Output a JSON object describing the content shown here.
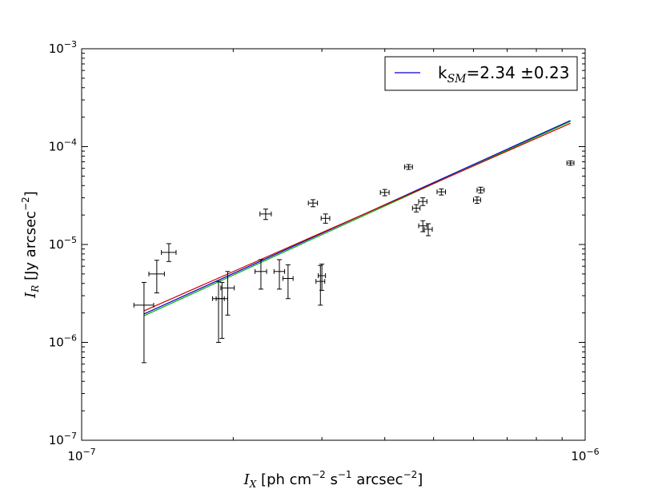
{
  "chart_data": {
    "type": "scatter",
    "xscale": "log",
    "yscale": "log",
    "xlim": [
      1e-07,
      1e-06
    ],
    "ylim": [
      1e-07,
      0.001
    ],
    "xlabel": {
      "var": "I",
      "sub": "X",
      "text": " [ph cm",
      "exp1": "−2",
      "mid1": " s",
      "exp2": "−1",
      "mid2": " arcsec",
      "exp3": "−2",
      "end": "]"
    },
    "ylabel": {
      "var": "I",
      "sub": "R",
      "text": " [Jy arcsec",
      "exp": "−2",
      "end": "]"
    },
    "xticks": [
      {
        "value": 1e-07,
        "base": "10",
        "exp": "−7"
      },
      {
        "value": 1e-06,
        "base": "10",
        "exp": "−6"
      }
    ],
    "yticks": [
      {
        "value": 1e-07,
        "base": "10",
        "exp": "−7"
      },
      {
        "value": 1e-06,
        "base": "10",
        "exp": "−6"
      },
      {
        "value": 1e-05,
        "base": "10",
        "exp": "−5"
      },
      {
        "value": 0.0001,
        "base": "10",
        "exp": "−4"
      },
      {
        "value": 0.001,
        "base": "10",
        "exp": "−3"
      }
    ],
    "grid": false,
    "legend": {
      "placement": "top-right",
      "entry": {
        "pre": "k",
        "sub": "SM",
        "post": "=2.34 ±0.23"
      },
      "color": "#0000cc"
    },
    "points": [
      {
        "x": 1.33e-07,
        "y": 2.4e-06,
        "xerr": 6e-09,
        "yerr_low": 1.78e-06,
        "yerr_high": 1.7e-06
      },
      {
        "x": 1.41e-07,
        "y": 5e-06,
        "xerr": 5e-09,
        "yerr_low": 1.8e-06,
        "yerr_high": 1.9e-06
      },
      {
        "x": 1.49e-07,
        "y": 8.3e-06,
        "xerr": 5e-09,
        "yerr_low": 1.6e-06,
        "yerr_high": 1.9e-06
      },
      {
        "x": 1.87e-07,
        "y": 2.8e-06,
        "xerr": 5e-09,
        "yerr_low": 1.8e-06,
        "yerr_high": 1.4e-06
      },
      {
        "x": 1.9e-07,
        "y": 2.8e-06,
        "xerr": 5e-09,
        "yerr_low": 1.7e-06,
        "yerr_high": 1.3e-06
      },
      {
        "x": 1.95e-07,
        "y": 3.6e-06,
        "xerr": 6e-09,
        "yerr_low": 1.7e-06,
        "yerr_high": 1.7e-06
      },
      {
        "x": 2.27e-07,
        "y": 5.3e-06,
        "xerr": 6e-09,
        "yerr_low": 1.8e-06,
        "yerr_high": 1.7e-06
      },
      {
        "x": 2.32e-07,
        "y": 2.05e-05,
        "xerr": 6e-09,
        "yerr_low": 2.5e-06,
        "yerr_high": 2.5e-06
      },
      {
        "x": 2.47e-07,
        "y": 5.3e-06,
        "xerr": 6e-09,
        "yerr_low": 1.8e-06,
        "yerr_high": 1.7e-06
      },
      {
        "x": 2.57e-07,
        "y": 4.5e-06,
        "xerr": 6e-09,
        "yerr_low": 1.7e-06,
        "yerr_high": 1.7e-06
      },
      {
        "x": 2.88e-07,
        "y": 2.65e-05,
        "xerr": 6e-09,
        "yerr_low": 2.2e-06,
        "yerr_high": 2.2e-06
      },
      {
        "x": 2.98e-07,
        "y": 4.2e-06,
        "xerr": 6e-09,
        "yerr_low": 1.8e-06,
        "yerr_high": 1.9e-06
      },
      {
        "x": 3e-07,
        "y": 4.8e-06,
        "xerr": 5e-09,
        "yerr_low": 1.4e-06,
        "yerr_high": 1.5e-06
      },
      {
        "x": 3.05e-07,
        "y": 1.85e-05,
        "xerr": 6e-09,
        "yerr_low": 2e-06,
        "yerr_high": 2e-06
      },
      {
        "x": 4e-07,
        "y": 3.4e-05,
        "xerr": 8e-09,
        "yerr_low": 2.5e-06,
        "yerr_high": 2.5e-06
      },
      {
        "x": 4.46e-07,
        "y": 6.2e-05,
        "xerr": 8e-09,
        "yerr_low": 3.5e-06,
        "yerr_high": 3.5e-06
      },
      {
        "x": 4.62e-07,
        "y": 2.35e-05,
        "xerr": 8e-09,
        "yerr_low": 2e-06,
        "yerr_high": 2e-06
      },
      {
        "x": 4.76e-07,
        "y": 2.75e-05,
        "xerr": 9e-09,
        "yerr_low": 2.5e-06,
        "yerr_high": 2.5e-06
      },
      {
        "x": 4.76e-07,
        "y": 1.55e-05,
        "xerr": 9e-09,
        "yerr_low": 2e-06,
        "yerr_high": 2e-06
      },
      {
        "x": 4.88e-07,
        "y": 1.43e-05,
        "xerr": 9e-09,
        "yerr_low": 2e-06,
        "yerr_high": 2e-06
      },
      {
        "x": 5.18e-07,
        "y": 3.45e-05,
        "xerr": 1e-08,
        "yerr_low": 2.5e-06,
        "yerr_high": 2.5e-06
      },
      {
        "x": 6.1e-07,
        "y": 2.85e-05,
        "xerr": 1e-08,
        "yerr_low": 2.2e-06,
        "yerr_high": 2.2e-06
      },
      {
        "x": 6.2e-07,
        "y": 3.6e-05,
        "xerr": 1e-08,
        "yerr_low": 2.5e-06,
        "yerr_high": 2.5e-06
      },
      {
        "x": 9.35e-07,
        "y": 6.8e-05,
        "xerr": 1.5e-08,
        "yerr_low": 3.5e-06,
        "yerr_high": 3.5e-06
      }
    ],
    "fit_lines": [
      {
        "color": "#0000cc",
        "x": [
          1.33e-07,
          9.35e-07
        ],
        "y": [
          1.95e-06,
          0.000185
        ]
      },
      {
        "color": "#00aa00",
        "x": [
          1.33e-07,
          9.35e-07
        ],
        "y": [
          1.87e-06,
          0.000181
        ]
      },
      {
        "color": "#cc0000",
        "x": [
          1.33e-07,
          9.35e-07
        ],
        "y": [
          2.1e-06,
          0.000173
        ]
      }
    ]
  }
}
